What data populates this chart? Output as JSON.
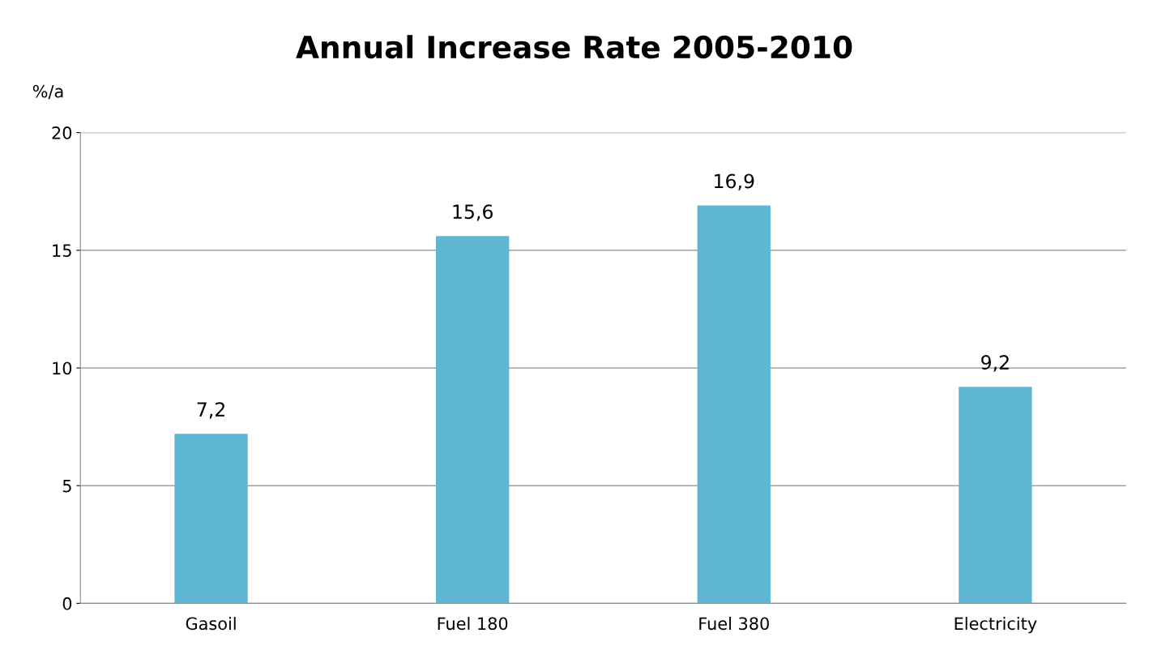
{
  "chart_data": {
    "type": "bar",
    "title": "Annual Increase Rate 2005-2010",
    "ylabel": "%/a",
    "categories": [
      "Gasoil",
      "Fuel 180",
      "Fuel 380",
      "Electricity"
    ],
    "values": [
      7.2,
      15.6,
      16.9,
      9.2
    ],
    "value_labels": [
      "7,2",
      "15,6",
      "16,9",
      "9,2"
    ],
    "color": "#5fb6d2",
    "ylim": [
      0,
      20
    ],
    "yticks": [
      0,
      5,
      10,
      15,
      20
    ],
    "grid": "y",
    "legend": false
  }
}
